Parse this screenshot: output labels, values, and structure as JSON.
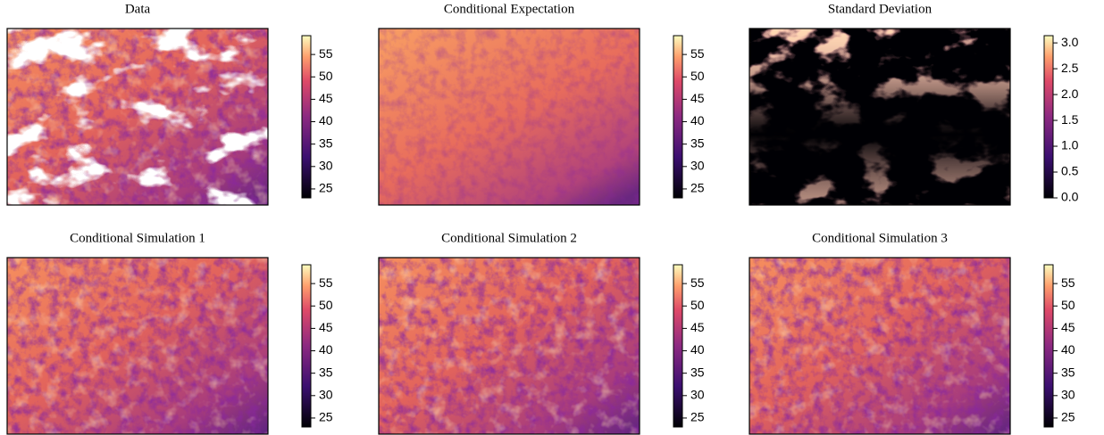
{
  "chart_data": [
    {
      "type": "heatmap",
      "title": "Data",
      "clim": [
        23,
        59.2
      ],
      "cticks": [
        25,
        30,
        35,
        40,
        45,
        50,
        55
      ]
    },
    {
      "type": "heatmap",
      "title": "Conditional Expectation",
      "clim": [
        23,
        59.2
      ],
      "cticks": [
        25,
        30,
        35,
        40,
        45,
        50,
        55
      ]
    },
    {
      "type": "heatmap",
      "title": "Standard Deviation",
      "clim": [
        0,
        3.14
      ],
      "cticks": [
        {
          "value": 0,
          "label": "0.0"
        },
        0.5,
        {
          "value": 1,
          "label": "1.0"
        },
        1.5,
        {
          "value": 2,
          "label": "2.0"
        },
        2.5,
        {
          "value": 3,
          "label": "3.0"
        }
      ]
    },
    {
      "type": "heatmap",
      "title": "Conditional Simulation 1",
      "clim": [
        23,
        59.2
      ],
      "cticks": [
        25,
        30,
        35,
        40,
        45,
        50,
        55
      ]
    },
    {
      "type": "heatmap",
      "title": "Conditional Simulation 2",
      "clim": [
        23,
        59.2
      ],
      "cticks": [
        25,
        30,
        35,
        40,
        45,
        50,
        55
      ]
    },
    {
      "type": "heatmap",
      "title": "Conditional Simulation 3",
      "clim": [
        23,
        59.2
      ],
      "cticks": [
        25,
        30,
        35,
        40,
        45,
        50,
        55
      ]
    }
  ]
}
